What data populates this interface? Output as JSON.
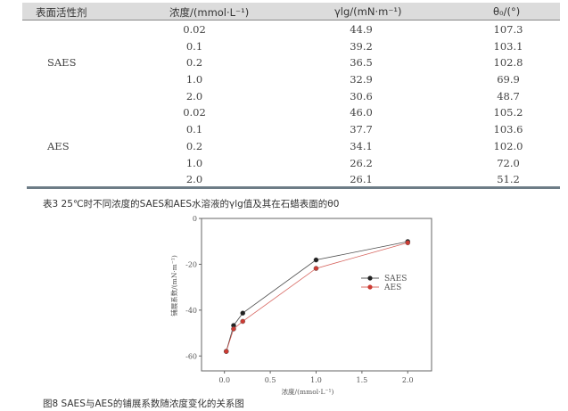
{
  "table": {
    "headers": [
      "表面活性剂",
      "浓度/(mmol·L⁻¹)",
      "γlg/(mN·m⁻¹)",
      "θ₀/(°)"
    ],
    "groups": [
      {
        "name": "SAES",
        "rows": [
          [
            "0.02",
            "44.9",
            "107.3"
          ],
          [
            "0.1",
            "39.2",
            "103.1"
          ],
          [
            "0.2",
            "36.5",
            "102.8"
          ],
          [
            "1.0",
            "32.9",
            "69.9"
          ],
          [
            "2.0",
            "30.6",
            "48.7"
          ]
        ]
      },
      {
        "name": "AES",
        "rows": [
          [
            "0.02",
            "46.0",
            "105.2"
          ],
          [
            "0.1",
            "37.7",
            "103.6"
          ],
          [
            "0.2",
            "34.1",
            "102.0"
          ],
          [
            "1.0",
            "26.2",
            "72.0"
          ],
          [
            "2.0",
            "26.1",
            "51.2"
          ]
        ]
      }
    ],
    "caption": "表3 25℃时不同浓度的SAES和AES水溶液的γlg值及其在石蜡表面的θ0"
  },
  "chart_data": {
    "type": "line",
    "xlabel": "浓度/(mmol·L⁻¹)",
    "ylabel": "铺展系数/(mN·m⁻¹)",
    "xlim": [
      -0.25,
      2.26
    ],
    "ylim": [
      -66.5,
      0
    ],
    "xticks": [
      "0.0",
      "0.5",
      "1.0",
      "1.5",
      "2.0"
    ],
    "yticks": [
      "0",
      "-20",
      "-40",
      "-60"
    ],
    "x": [
      0.02,
      0.1,
      0.2,
      1.0,
      2.0
    ],
    "series": [
      {
        "name": "SAES",
        "values": [
          -58,
          -46.7,
          -41.3,
          -18.1,
          -10.1
        ],
        "color": "#222222"
      },
      {
        "name": "AES",
        "values": [
          -58,
          -48.2,
          -44.9,
          -21.8,
          -10.6
        ],
        "color": "#cc3b33"
      }
    ],
    "legend": "right",
    "grid": false
  },
  "figure_caption": "图8 SAES与AES的铺展系数随浓度变化的关系图"
}
